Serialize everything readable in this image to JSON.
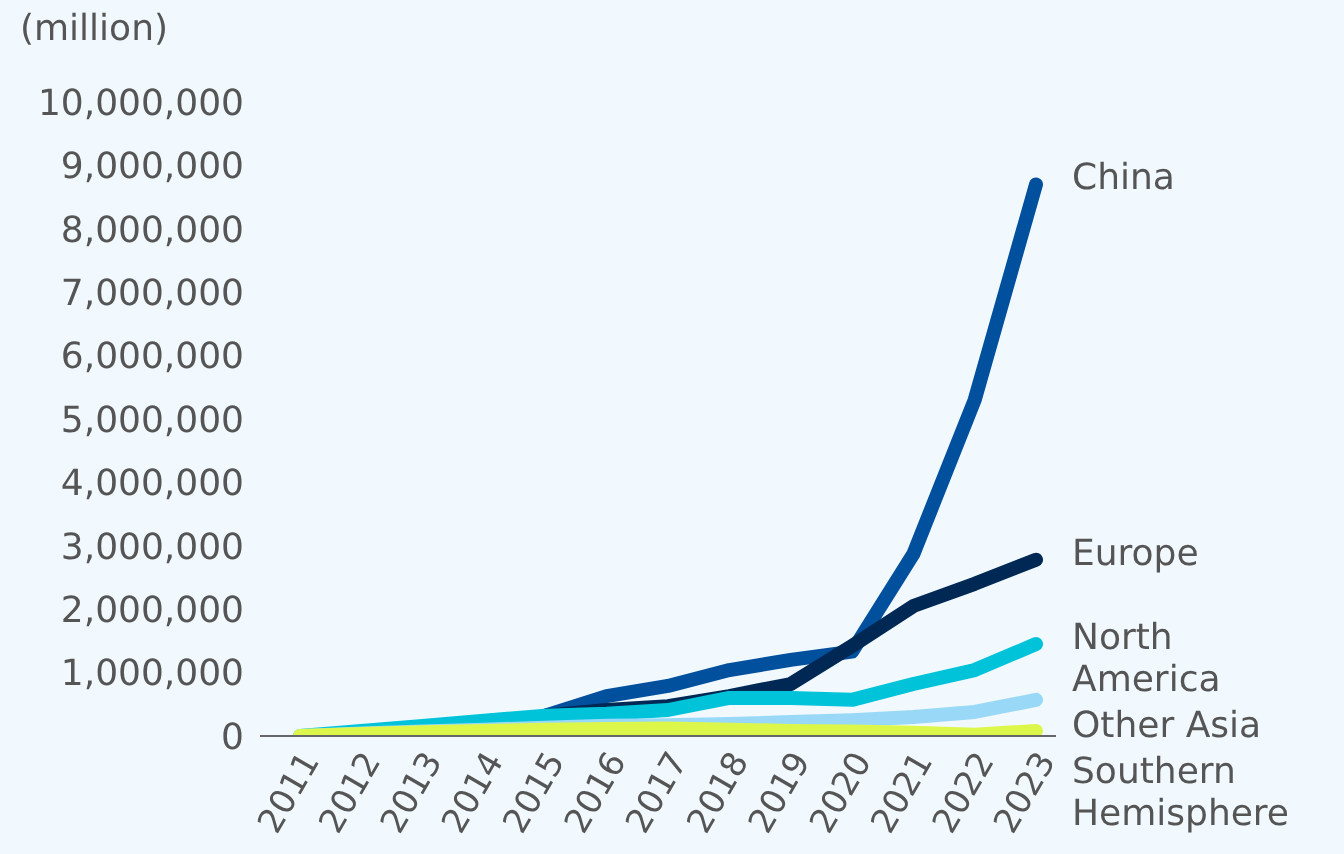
{
  "chart_data": {
    "type": "line",
    "ylabel": "(million)",
    "categories": [
      "2011",
      "2012",
      "2013",
      "2014",
      "2015",
      "2016",
      "2017",
      "2018",
      "2019",
      "2020",
      "2021",
      "2022",
      "2023"
    ],
    "series": [
      {
        "name": "China",
        "color": "#00509e",
        "values": [
          null,
          null,
          null,
          null,
          320000,
          630000,
          790000,
          1040000,
          1200000,
          1330000,
          2870000,
          5300000,
          8700000
        ]
      },
      {
        "name": "Europe",
        "color": "#002855",
        "values": [
          null,
          null,
          null,
          null,
          320000,
          410000,
          470000,
          630000,
          820000,
          1420000,
          2050000,
          2400000,
          2780000
        ]
      },
      {
        "name": "North America",
        "color": "#00c3d9",
        "values": [
          0,
          80000,
          160000,
          240000,
          320000,
          350000,
          410000,
          600000,
          600000,
          570000,
          820000,
          1040000,
          1450000
        ]
      },
      {
        "name": "Other Asia",
        "color": "#99d9f7",
        "values": [
          0,
          40000,
          70000,
          100000,
          130000,
          160000,
          170000,
          190000,
          220000,
          250000,
          300000,
          380000,
          570000
        ]
      },
      {
        "name": "Southern Hemisphere",
        "color": "#dcf74a",
        "values": [
          0,
          30000,
          60000,
          80000,
          100000,
          110000,
          120000,
          100000,
          80000,
          70000,
          50000,
          20000,
          80000
        ]
      }
    ],
    "ylim": [
      0,
      10000000
    ],
    "yticks": [
      0,
      {
        "value": 1000000,
        "label": "1,000,000"
      },
      {
        "value": 2000000,
        "label": "2,000,000"
      },
      {
        "value": 3000000,
        "label": "3,000,000"
      },
      {
        "value": 4000000,
        "label": "4,000,000"
      },
      {
        "value": 5000000,
        "label": "5,000,000"
      },
      {
        "value": 6000000,
        "label": "6,000,000"
      },
      {
        "value": 7000000,
        "label": "7,000,000"
      },
      {
        "value": 8000000,
        "label": "8,000,000"
      },
      {
        "value": 9000000,
        "label": "9,000,000"
      },
      {
        "value": 10000000,
        "label": "10,000,000"
      }
    ],
    "grid": false,
    "legend": false,
    "marker": "none",
    "line_style": "solid"
  }
}
